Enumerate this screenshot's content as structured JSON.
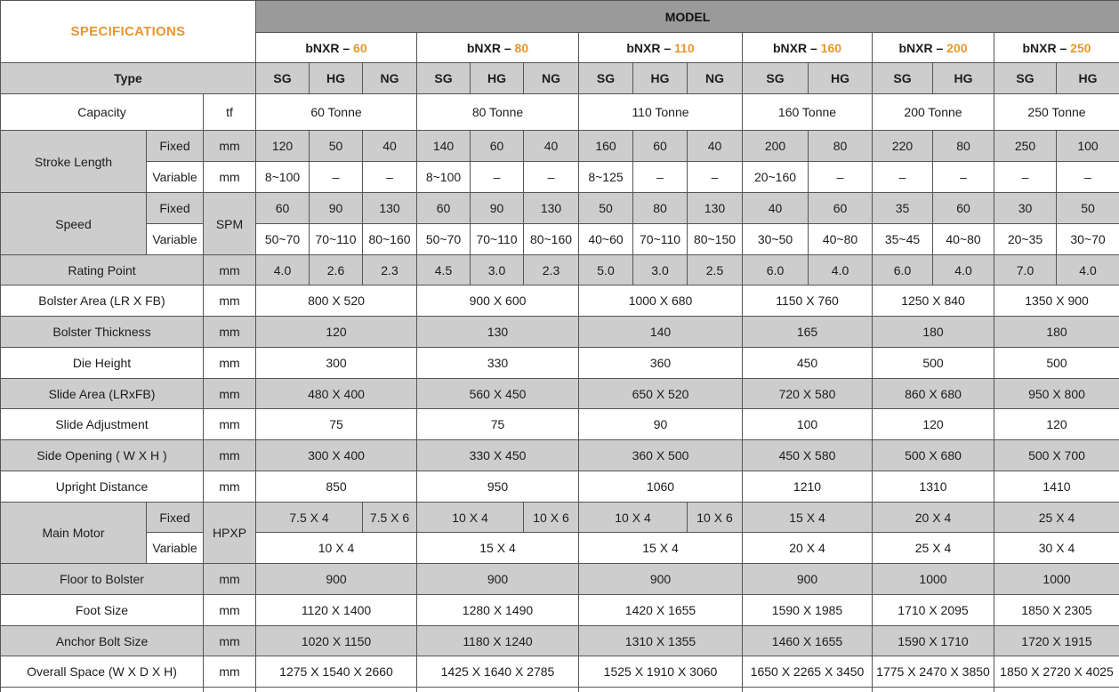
{
  "accent_color": "#E8962F",
  "header_gray": "#9a9a9a",
  "band_gray": "#cdcdcd",
  "table": {
    "head": [
      {
        "rc": "h36",
        "cells": [
          {
            "t": "SPECIFICATIONS",
            "cs": 3,
            "rs": 2,
            "c": "spec",
            "n": "specifications-title"
          },
          {
            "t": "MODEL",
            "cs": 15,
            "c": "modelbar",
            "n": "model-header"
          }
        ]
      },
      {
        "rc": "h34",
        "cells": [
          {
            "t": "bNXR – ",
            "t2": "60",
            "cs": 3,
            "n": "model-name"
          },
          {
            "t": "bNXR – ",
            "t2": "80",
            "cs": 3,
            "n": "model-name"
          },
          {
            "t": "bNXR – ",
            "t2": "110",
            "cs": 3,
            "n": "model-name"
          },
          {
            "t": "bNXR – ",
            "t2": "160",
            "cs": 2,
            "n": "model-name"
          },
          {
            "t": "bNXR – ",
            "t2": "200",
            "cs": 2,
            "n": "model-name"
          },
          {
            "t": "bNXR – ",
            "t2": "250",
            "cs": 2,
            "n": "model-name"
          }
        ]
      },
      {
        "rc": "g",
        "cells": [
          {
            "t": "Type",
            "cs": 3,
            "n": "type-label"
          },
          {
            "t": "SG",
            "n": "type-header"
          },
          {
            "t": "HG",
            "n": "type-header"
          },
          {
            "t": "NG",
            "n": "type-header"
          },
          {
            "t": "SG",
            "n": "type-header"
          },
          {
            "t": "HG",
            "n": "type-header"
          },
          {
            "t": "NG",
            "n": "type-header"
          },
          {
            "t": "SG",
            "n": "type-header"
          },
          {
            "t": "HG",
            "n": "type-header"
          },
          {
            "t": "NG",
            "n": "type-header"
          },
          {
            "t": "SG",
            "n": "type-header"
          },
          {
            "t": "HG",
            "n": "type-header"
          },
          {
            "t": "SG",
            "n": "type-header"
          },
          {
            "t": "HG",
            "n": "type-header"
          },
          {
            "t": "SG",
            "n": "type-header"
          },
          {
            "t": "HG",
            "n": "type-header"
          }
        ]
      }
    ],
    "body": [
      {
        "rc": "h41",
        "cells": [
          {
            "t": "Capacity",
            "cs": 2,
            "n": "row-label"
          },
          {
            "t": "tf",
            "n": "unit-cell"
          },
          {
            "t": "60 Tonne",
            "cs": 3
          },
          {
            "t": "80 Tonne",
            "cs": 3
          },
          {
            "t": "110 Tonne",
            "cs": 3
          },
          {
            "t": "160 Tonne",
            "cs": 2
          },
          {
            "t": "200 Tonne",
            "cs": 2
          },
          {
            "t": "250 Tonne",
            "cs": 2
          }
        ]
      },
      {
        "rc": "g",
        "cells": [
          {
            "t": "Stroke Length",
            "rs": 2,
            "n": "row-label"
          },
          {
            "t": "Fixed",
            "n": "sub-label"
          },
          {
            "t": "mm",
            "n": "unit-cell"
          },
          {
            "t": "120"
          },
          {
            "t": "50"
          },
          {
            "t": "40"
          },
          {
            "t": "140"
          },
          {
            "t": "60"
          },
          {
            "t": "40"
          },
          {
            "t": "160"
          },
          {
            "t": "60"
          },
          {
            "t": "40"
          },
          {
            "t": "200"
          },
          {
            "t": "80"
          },
          {
            "t": "220"
          },
          {
            "t": "80"
          },
          {
            "t": "250"
          },
          {
            "t": "100"
          }
        ]
      },
      {
        "cells": [
          {
            "t": "Variable",
            "n": "sub-label"
          },
          {
            "t": "mm",
            "n": "unit-cell"
          },
          {
            "t": "8~100"
          },
          {
            "t": "–"
          },
          {
            "t": "–"
          },
          {
            "t": "8~100"
          },
          {
            "t": "–"
          },
          {
            "t": "–"
          },
          {
            "t": "8~125"
          },
          {
            "t": "–"
          },
          {
            "t": "–"
          },
          {
            "t": "20~160"
          },
          {
            "t": "–"
          },
          {
            "t": "–"
          },
          {
            "t": "–"
          },
          {
            "t": "–"
          },
          {
            "t": "–"
          }
        ]
      },
      {
        "rc": "g",
        "cells": [
          {
            "t": "Speed",
            "rs": 2,
            "n": "row-label"
          },
          {
            "t": "Fixed",
            "n": "sub-label"
          },
          {
            "t": "SPM",
            "rs": 2,
            "c": "w",
            "n": "unit-cell"
          },
          {
            "t": "60"
          },
          {
            "t": "90"
          },
          {
            "t": "130"
          },
          {
            "t": "60"
          },
          {
            "t": "90"
          },
          {
            "t": "130"
          },
          {
            "t": "50"
          },
          {
            "t": "80"
          },
          {
            "t": "130"
          },
          {
            "t": "40"
          },
          {
            "t": "60"
          },
          {
            "t": "35"
          },
          {
            "t": "60"
          },
          {
            "t": "30"
          },
          {
            "t": "50"
          }
        ]
      },
      {
        "cells": [
          {
            "t": "Variable",
            "n": "sub-label"
          },
          {
            "t": "50~70"
          },
          {
            "t": "70~110"
          },
          {
            "t": "80~160"
          },
          {
            "t": "50~70"
          },
          {
            "t": "70~110"
          },
          {
            "t": "80~160"
          },
          {
            "t": "40~60"
          },
          {
            "t": "70~110"
          },
          {
            "t": "80~150"
          },
          {
            "t": "30~50"
          },
          {
            "t": "40~80"
          },
          {
            "t": "35~45"
          },
          {
            "t": "40~80"
          },
          {
            "t": "20~35"
          },
          {
            "t": "30~70"
          }
        ]
      },
      {
        "rc": "h34 g",
        "cells": [
          {
            "t": "Rating Point",
            "cs": 2,
            "n": "row-label"
          },
          {
            "t": "mm",
            "n": "unit-cell"
          },
          {
            "t": "4.0"
          },
          {
            "t": "2.6"
          },
          {
            "t": "2.3"
          },
          {
            "t": "4.5"
          },
          {
            "t": "3.0"
          },
          {
            "t": "2.3"
          },
          {
            "t": "5.0"
          },
          {
            "t": "3.0"
          },
          {
            "t": "2.5"
          },
          {
            "t": "6.0"
          },
          {
            "t": "4.0"
          },
          {
            "t": "6.0"
          },
          {
            "t": "4.0"
          },
          {
            "t": "7.0"
          },
          {
            "t": "4.0"
          }
        ]
      },
      {
        "cells": [
          {
            "t": "Bolster Area (LR X FB)",
            "cs": 2,
            "n": "row-label"
          },
          {
            "t": "mm",
            "n": "unit-cell"
          },
          {
            "t": "800 X 520",
            "cs": 3
          },
          {
            "t": "900 X 600",
            "cs": 3
          },
          {
            "t": "1000 X 680",
            "cs": 3
          },
          {
            "t": "1150 X 760",
            "cs": 2
          },
          {
            "t": "1250 X 840",
            "cs": 2
          },
          {
            "t": "1350 X 900",
            "cs": 2
          }
        ]
      },
      {
        "rc": "g",
        "cells": [
          {
            "t": "Bolster Thickness",
            "cs": 2,
            "n": "row-label"
          },
          {
            "t": "mm",
            "n": "unit-cell"
          },
          {
            "t": "120",
            "cs": 3
          },
          {
            "t": "130",
            "cs": 3
          },
          {
            "t": "140",
            "cs": 3
          },
          {
            "t": "165",
            "cs": 2
          },
          {
            "t": "180",
            "cs": 2
          },
          {
            "t": "180",
            "cs": 2
          }
        ]
      },
      {
        "cells": [
          {
            "t": "Die Height",
            "cs": 2,
            "n": "row-label"
          },
          {
            "t": "mm",
            "n": "unit-cell"
          },
          {
            "t": "300",
            "cs": 3
          },
          {
            "t": "330",
            "cs": 3
          },
          {
            "t": "360",
            "cs": 3
          },
          {
            "t": "450",
            "cs": 2
          },
          {
            "t": "500",
            "cs": 2
          },
          {
            "t": "500",
            "cs": 2
          }
        ]
      },
      {
        "rc": "h34 g",
        "cells": [
          {
            "t": "Slide Area (LRxFB)",
            "cs": 2,
            "n": "row-label"
          },
          {
            "t": "mm",
            "n": "unit-cell"
          },
          {
            "t": "480 X 400",
            "cs": 3
          },
          {
            "t": "560 X 450",
            "cs": 3
          },
          {
            "t": "650 X 520",
            "cs": 3
          },
          {
            "t": "720 X 580",
            "cs": 2
          },
          {
            "t": "860 X 680",
            "cs": 2
          },
          {
            "t": "950 X 800",
            "cs": 2
          }
        ]
      },
      {
        "cells": [
          {
            "t": "Slide Adjustment",
            "cs": 2,
            "n": "row-label"
          },
          {
            "t": "mm",
            "n": "unit-cell"
          },
          {
            "t": "75",
            "cs": 3
          },
          {
            "t": "75",
            "cs": 3
          },
          {
            "t": "90",
            "cs": 3
          },
          {
            "t": "100",
            "cs": 2
          },
          {
            "t": "120",
            "cs": 2
          },
          {
            "t": "120",
            "cs": 2
          }
        ]
      },
      {
        "rc": "g",
        "cells": [
          {
            "t": "Side Opening ( W X H )",
            "cs": 2,
            "n": "row-label"
          },
          {
            "t": "mm",
            "n": "unit-cell"
          },
          {
            "t": "300 X 400",
            "cs": 3
          },
          {
            "t": "330 X 450",
            "cs": 3
          },
          {
            "t": "360 X 500",
            "cs": 3
          },
          {
            "t": "450 X 580",
            "cs": 2
          },
          {
            "t": "500 X 680",
            "cs": 2
          },
          {
            "t": "500 X 700",
            "cs": 2
          }
        ]
      },
      {
        "cells": [
          {
            "t": "Upright Distance",
            "cs": 2,
            "n": "row-label"
          },
          {
            "t": "mm",
            "n": "unit-cell"
          },
          {
            "t": "850",
            "cs": 3
          },
          {
            "t": "950",
            "cs": 3
          },
          {
            "t": "1060",
            "cs": 3
          },
          {
            "t": "1210",
            "cs": 2
          },
          {
            "t": "1310",
            "cs": 2
          },
          {
            "t": "1410",
            "cs": 2
          }
        ]
      },
      {
        "rc": "h34 g",
        "cells": [
          {
            "t": "Main Motor",
            "rs": 2,
            "n": "row-label"
          },
          {
            "t": "Fixed",
            "n": "sub-label"
          },
          {
            "t": "HPXP",
            "rs": 2,
            "c": "w",
            "n": "unit-cell"
          },
          {
            "t": "7.5 X 4",
            "cs": 2
          },
          {
            "t": "7.5 X 6"
          },
          {
            "t": "10 X 4",
            "cs": 2
          },
          {
            "t": "10 X 6"
          },
          {
            "t": "10 X 4",
            "cs": 2
          },
          {
            "t": "10 X 6"
          },
          {
            "t": "15 X 4",
            "cs": 2
          },
          {
            "t": "20 X 4",
            "cs": 2
          },
          {
            "t": "25 X 4",
            "cs": 2
          }
        ]
      },
      {
        "cells": [
          {
            "t": "Variable",
            "n": "sub-label"
          },
          {
            "t": "10 X 4",
            "cs": 3
          },
          {
            "t": "15 X 4",
            "cs": 3
          },
          {
            "t": "15 X 4",
            "cs": 3
          },
          {
            "t": "20 X 4",
            "cs": 2
          },
          {
            "t": "25 X 4",
            "cs": 2
          },
          {
            "t": "30 X 4",
            "cs": 2
          }
        ]
      },
      {
        "rc": "g",
        "cells": [
          {
            "t": "Floor to Bolster",
            "cs": 2,
            "n": "row-label"
          },
          {
            "t": "mm",
            "n": "unit-cell"
          },
          {
            "t": "900",
            "cs": 3
          },
          {
            "t": "900",
            "cs": 3
          },
          {
            "t": "900",
            "cs": 3
          },
          {
            "t": "900",
            "cs": 2
          },
          {
            "t": "1000",
            "cs": 2
          },
          {
            "t": "1000",
            "cs": 2
          }
        ]
      },
      {
        "cells": [
          {
            "t": "Foot Size",
            "cs": 2,
            "n": "row-label"
          },
          {
            "t": "mm",
            "n": "unit-cell"
          },
          {
            "t": "1120 X 1400",
            "cs": 3
          },
          {
            "t": "1280 X 1490",
            "cs": 3
          },
          {
            "t": "1420 X 1655",
            "cs": 3
          },
          {
            "t": "1590 X 1985",
            "cs": 2
          },
          {
            "t": "1710 X 2095",
            "cs": 2
          },
          {
            "t": "1850 X 2305",
            "cs": 2
          }
        ]
      },
      {
        "rc": "h34 g",
        "cells": [
          {
            "t": "Anchor Bolt Size",
            "cs": 2,
            "n": "row-label"
          },
          {
            "t": "mm",
            "n": "unit-cell"
          },
          {
            "t": "1020 X 1150",
            "cs": 3
          },
          {
            "t": "1180 X 1240",
            "cs": 3
          },
          {
            "t": "1310 X 1355",
            "cs": 3
          },
          {
            "t": "1460 X 1655",
            "cs": 2
          },
          {
            "t": "1590 X 1710",
            "cs": 2
          },
          {
            "t": "1720 X 1915",
            "cs": 2
          }
        ]
      },
      {
        "cells": [
          {
            "t": "Overall Space (W X D X H)",
            "cs": 2,
            "n": "row-label"
          },
          {
            "t": "mm",
            "n": "unit-cell"
          },
          {
            "t": "1275 X 1540 X 2660",
            "cs": 3
          },
          {
            "t": "1425 X 1640 X 2785",
            "cs": 3
          },
          {
            "t": "1525 X 1910 X 3060",
            "cs": 3
          },
          {
            "t": "1650 X 2265 X 3450",
            "cs": 2
          },
          {
            "t": "1775 X 2470 X 3850",
            "cs": 2
          },
          {
            "t": "1850 X 2720 X 4025",
            "cs": 2
          }
        ]
      },
      {
        "rc": "h6 stub",
        "cells": [
          {
            "t": "",
            "cs": 2,
            "n": "partial-row-cell"
          },
          {
            "t": "",
            "n": "partial-row-cell"
          },
          {
            "t": "",
            "cs": 3,
            "n": "partial-row-cell"
          },
          {
            "t": "",
            "cs": 3,
            "n": "partial-row-cell"
          },
          {
            "t": "",
            "cs": 3,
            "n": "partial-row-cell"
          },
          {
            "t": "",
            "cs": 2,
            "n": "partial-row-cell"
          },
          {
            "t": "",
            "cs": 2,
            "n": "partial-row-cell"
          },
          {
            "t": "",
            "cs": 2,
            "n": "partial-row-cell"
          }
        ]
      }
    ]
  }
}
